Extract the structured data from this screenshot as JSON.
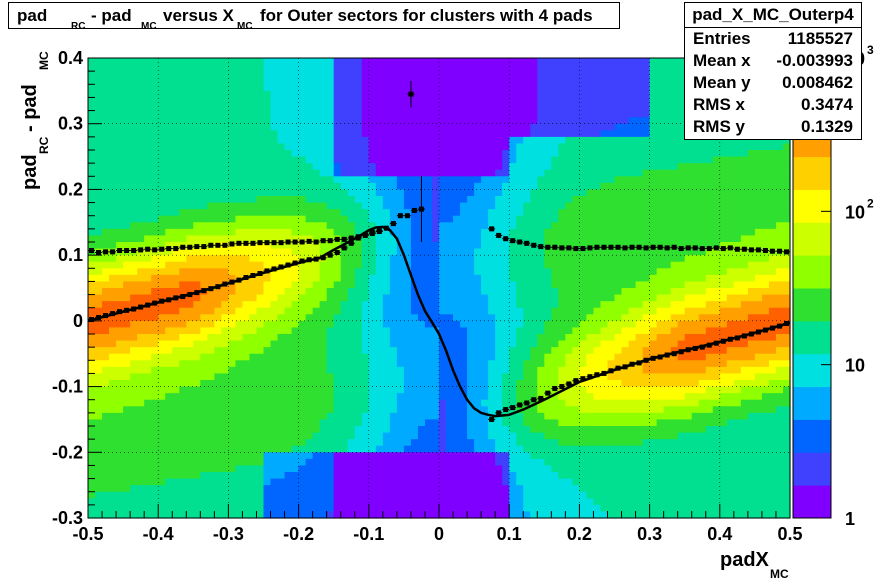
{
  "title": {
    "parts": [
      "pad",
      "RC",
      " - pad",
      "MC",
      " versus X",
      "MC",
      " for Outer sectors for clusters with 4 pads"
    ]
  },
  "stats": {
    "name": "pad_X_MC_Outerp4",
    "rows": [
      {
        "key": "Entries",
        "value": "1185527"
      },
      {
        "key": "Mean x",
        "value": "-0.003993"
      },
      {
        "key": "Mean y",
        "value": "0.008462"
      },
      {
        "key": "RMS x",
        "value": "0.3474"
      },
      {
        "key": "RMS y",
        "value": "0.1329"
      }
    ]
  },
  "colors": {
    "palette": [
      "#8000ff",
      "#4040ff",
      "#0066ff",
      "#00aaff",
      "#00e0e0",
      "#00e090",
      "#30e030",
      "#90ff00",
      "#ccff00",
      "#ffff00",
      "#ffd000",
      "#ffa000",
      "#ff6000",
      "#ff0000"
    ]
  },
  "chart_data": {
    "type": "heatmap",
    "x_axis": {
      "label": "padX",
      "label_sub": "MC",
      "range": [
        -0.5,
        0.5
      ],
      "ticks": [
        "-0.5",
        "-0.4",
        "-0.3",
        "-0.2",
        "-0.1",
        "0",
        "0.1",
        "0.2",
        "0.3",
        "0.4",
        "0.5"
      ]
    },
    "y_axis": {
      "label": "pad",
      "label_sub1": "RC",
      "label_mid": " - pad",
      "label_sub2": "MC",
      "range": [
        -0.3,
        0.4
      ],
      "ticks": [
        "-0.3",
        "-0.2",
        "-0.1",
        "0",
        "0.1",
        "0.2",
        "0.3",
        "0.4"
      ]
    },
    "z_axis": {
      "scale": "log",
      "range": [
        1,
        1000
      ],
      "ticks": [
        {
          "value": 1,
          "label": "1"
        },
        {
          "value": 10,
          "label": "10"
        },
        {
          "value": 100,
          "label": "10",
          "sup": "2"
        },
        {
          "value": 1000,
          "label": "10",
          "sup": "3"
        }
      ]
    },
    "grid": true,
    "profile_points": [
      [
        -0.495,
        0.107
      ],
      [
        -0.485,
        0.104
      ],
      [
        -0.475,
        0.105
      ],
      [
        -0.465,
        0.105
      ],
      [
        -0.455,
        0.107
      ],
      [
        -0.445,
        0.107
      ],
      [
        -0.435,
        0.107
      ],
      [
        -0.425,
        0.108
      ],
      [
        -0.415,
        0.109
      ],
      [
        -0.405,
        0.108
      ],
      [
        -0.395,
        0.109
      ],
      [
        -0.385,
        0.11
      ],
      [
        -0.375,
        0.11
      ],
      [
        -0.365,
        0.112
      ],
      [
        -0.355,
        0.112
      ],
      [
        -0.345,
        0.113
      ],
      [
        -0.335,
        0.113
      ],
      [
        -0.325,
        0.115
      ],
      [
        -0.315,
        0.115
      ],
      [
        -0.305,
        0.115
      ],
      [
        -0.295,
        0.117
      ],
      [
        -0.285,
        0.118
      ],
      [
        -0.275,
        0.118
      ],
      [
        -0.265,
        0.118
      ],
      [
        -0.255,
        0.119
      ],
      [
        -0.245,
        0.119
      ],
      [
        -0.235,
        0.119
      ],
      [
        -0.225,
        0.119
      ],
      [
        -0.215,
        0.12
      ],
      [
        -0.205,
        0.12
      ],
      [
        -0.195,
        0.12
      ],
      [
        -0.185,
        0.121
      ],
      [
        -0.175,
        0.12
      ],
      [
        -0.165,
        0.122
      ],
      [
        -0.155,
        0.122
      ],
      [
        -0.145,
        0.124
      ],
      [
        -0.135,
        0.124
      ],
      [
        -0.125,
        0.126
      ],
      [
        -0.115,
        0.128
      ],
      [
        -0.105,
        0.13
      ],
      [
        -0.095,
        0.133
      ],
      [
        -0.085,
        0.136
      ],
      [
        -0.075,
        0.141
      ],
      [
        -0.065,
        0.148
      ],
      [
        -0.055,
        0.16
      ],
      [
        -0.045,
        0.16
      ],
      [
        -0.035,
        0.168
      ],
      [
        -0.025,
        0.17
      ],
      [
        -0.04,
        0.345
      ],
      [
        0.075,
        0.14
      ],
      [
        0.085,
        0.13
      ],
      [
        0.095,
        0.125
      ],
      [
        0.105,
        0.122
      ],
      [
        0.115,
        0.12
      ],
      [
        0.125,
        0.118
      ],
      [
        0.135,
        0.115
      ],
      [
        0.145,
        0.113
      ],
      [
        0.155,
        0.112
      ],
      [
        0.165,
        0.112
      ],
      [
        0.175,
        0.111
      ],
      [
        0.185,
        0.111
      ],
      [
        0.195,
        0.11
      ],
      [
        0.205,
        0.11
      ],
      [
        0.215,
        0.111
      ],
      [
        0.225,
        0.112
      ],
      [
        0.235,
        0.112
      ],
      [
        0.245,
        0.112
      ],
      [
        0.255,
        0.112
      ],
      [
        0.265,
        0.111
      ],
      [
        0.275,
        0.112
      ],
      [
        0.285,
        0.112
      ],
      [
        0.295,
        0.111
      ],
      [
        0.305,
        0.112
      ],
      [
        0.315,
        0.112
      ],
      [
        0.325,
        0.111
      ],
      [
        0.335,
        0.112
      ],
      [
        0.345,
        0.11
      ],
      [
        0.355,
        0.111
      ],
      [
        0.365,
        0.111
      ],
      [
        0.375,
        0.11
      ],
      [
        0.385,
        0.11
      ],
      [
        0.395,
        0.111
      ],
      [
        0.405,
        0.11
      ],
      [
        0.415,
        0.111
      ],
      [
        0.425,
        0.109
      ],
      [
        0.435,
        0.109
      ],
      [
        0.445,
        0.108
      ],
      [
        0.455,
        0.108
      ],
      [
        0.465,
        0.107
      ],
      [
        0.475,
        0.106
      ],
      [
        0.485,
        0.106
      ],
      [
        0.495,
        0.105
      ]
    ],
    "lower_points": [
      [
        -0.495,
        0.002
      ],
      [
        -0.485,
        0.005
      ],
      [
        -0.475,
        0.008
      ],
      [
        -0.465,
        0.011
      ],
      [
        -0.455,
        0.014
      ],
      [
        -0.445,
        0.016
      ],
      [
        -0.435,
        0.018
      ],
      [
        -0.425,
        0.021
      ],
      [
        -0.415,
        0.024
      ],
      [
        -0.405,
        0.027
      ],
      [
        -0.395,
        0.03
      ],
      [
        -0.385,
        0.032
      ],
      [
        -0.375,
        0.035
      ],
      [
        -0.365,
        0.037
      ],
      [
        -0.355,
        0.04
      ],
      [
        -0.345,
        0.043
      ],
      [
        -0.335,
        0.046
      ],
      [
        -0.325,
        0.049
      ],
      [
        -0.315,
        0.052
      ],
      [
        -0.305,
        0.056
      ],
      [
        -0.295,
        0.059
      ],
      [
        -0.285,
        0.062
      ],
      [
        -0.275,
        0.066
      ],
      [
        -0.265,
        0.069
      ],
      [
        -0.255,
        0.072
      ],
      [
        -0.245,
        0.076
      ],
      [
        -0.235,
        0.079
      ],
      [
        -0.225,
        0.082
      ],
      [
        -0.215,
        0.085
      ],
      [
        -0.205,
        0.088
      ],
      [
        -0.195,
        0.091
      ],
      [
        -0.185,
        0.093
      ],
      [
        -0.175,
        0.094
      ],
      [
        -0.165,
        0.096
      ],
      [
        -0.155,
        0.1
      ],
      [
        -0.145,
        0.104
      ],
      [
        -0.135,
        0.111
      ],
      [
        -0.125,
        0.118
      ],
      [
        -0.115,
        0.126
      ],
      [
        -0.105,
        0.131
      ],
      [
        -0.095,
        0.135
      ],
      [
        -0.085,
        0.137
      ],
      [
        0.075,
        -0.15
      ],
      [
        0.085,
        -0.14
      ],
      [
        0.095,
        -0.135
      ],
      [
        0.105,
        -0.132
      ],
      [
        0.115,
        -0.128
      ],
      [
        0.125,
        -0.125
      ],
      [
        0.135,
        -0.12
      ],
      [
        0.145,
        -0.118
      ],
      [
        0.155,
        -0.11
      ],
      [
        0.165,
        -0.103
      ],
      [
        0.175,
        -0.1
      ],
      [
        0.185,
        -0.096
      ],
      [
        0.195,
        -0.091
      ],
      [
        0.205,
        -0.088
      ],
      [
        0.215,
        -0.085
      ],
      [
        0.225,
        -0.082
      ],
      [
        0.235,
        -0.08
      ],
      [
        0.245,
        -0.076
      ],
      [
        0.255,
        -0.072
      ],
      [
        0.265,
        -0.07
      ],
      [
        0.275,
        -0.066
      ],
      [
        0.285,
        -0.064
      ],
      [
        0.295,
        -0.06
      ],
      [
        0.305,
        -0.057
      ],
      [
        0.315,
        -0.055
      ],
      [
        0.325,
        -0.052
      ],
      [
        0.335,
        -0.05
      ],
      [
        0.345,
        -0.047
      ],
      [
        0.355,
        -0.044
      ],
      [
        0.365,
        -0.042
      ],
      [
        0.375,
        -0.04
      ],
      [
        0.385,
        -0.037
      ],
      [
        0.395,
        -0.034
      ],
      [
        0.405,
        -0.031
      ],
      [
        0.415,
        -0.028
      ],
      [
        0.425,
        -0.026
      ],
      [
        0.435,
        -0.023
      ],
      [
        0.445,
        -0.02
      ],
      [
        0.455,
        -0.017
      ],
      [
        0.465,
        -0.014
      ],
      [
        0.475,
        -0.011
      ],
      [
        0.485,
        -0.008
      ],
      [
        0.495,
        -0.004
      ]
    ],
    "fit_curve": [
      [
        -0.5,
        0.0
      ],
      [
        -0.45,
        0.014
      ],
      [
        -0.4,
        0.028
      ],
      [
        -0.35,
        0.042
      ],
      [
        -0.3,
        0.057
      ],
      [
        -0.25,
        0.073
      ],
      [
        -0.2,
        0.088
      ],
      [
        -0.17,
        0.096
      ],
      [
        -0.15,
        0.108
      ],
      [
        -0.12,
        0.125
      ],
      [
        -0.1,
        0.138
      ],
      [
        -0.09,
        0.142
      ],
      [
        -0.08,
        0.143
      ],
      [
        -0.07,
        0.138
      ],
      [
        -0.06,
        0.125
      ],
      [
        -0.05,
        0.1
      ],
      [
        -0.04,
        0.07
      ],
      [
        -0.03,
        0.04
      ],
      [
        -0.02,
        0.015
      ],
      [
        -0.01,
        -0.002
      ],
      [
        0.0,
        -0.02
      ],
      [
        0.01,
        -0.045
      ],
      [
        0.02,
        -0.075
      ],
      [
        0.03,
        -0.1
      ],
      [
        0.04,
        -0.12
      ],
      [
        0.05,
        -0.133
      ],
      [
        0.06,
        -0.14
      ],
      [
        0.07,
        -0.143
      ],
      [
        0.08,
        -0.145
      ],
      [
        0.09,
        -0.144
      ],
      [
        0.1,
        -0.143
      ],
      [
        0.12,
        -0.135
      ],
      [
        0.15,
        -0.12
      ],
      [
        0.2,
        -0.093
      ],
      [
        0.25,
        -0.075
      ],
      [
        0.3,
        -0.058
      ],
      [
        0.35,
        -0.045
      ],
      [
        0.4,
        -0.032
      ],
      [
        0.45,
        -0.018
      ],
      [
        0.5,
        -0.003
      ]
    ]
  }
}
